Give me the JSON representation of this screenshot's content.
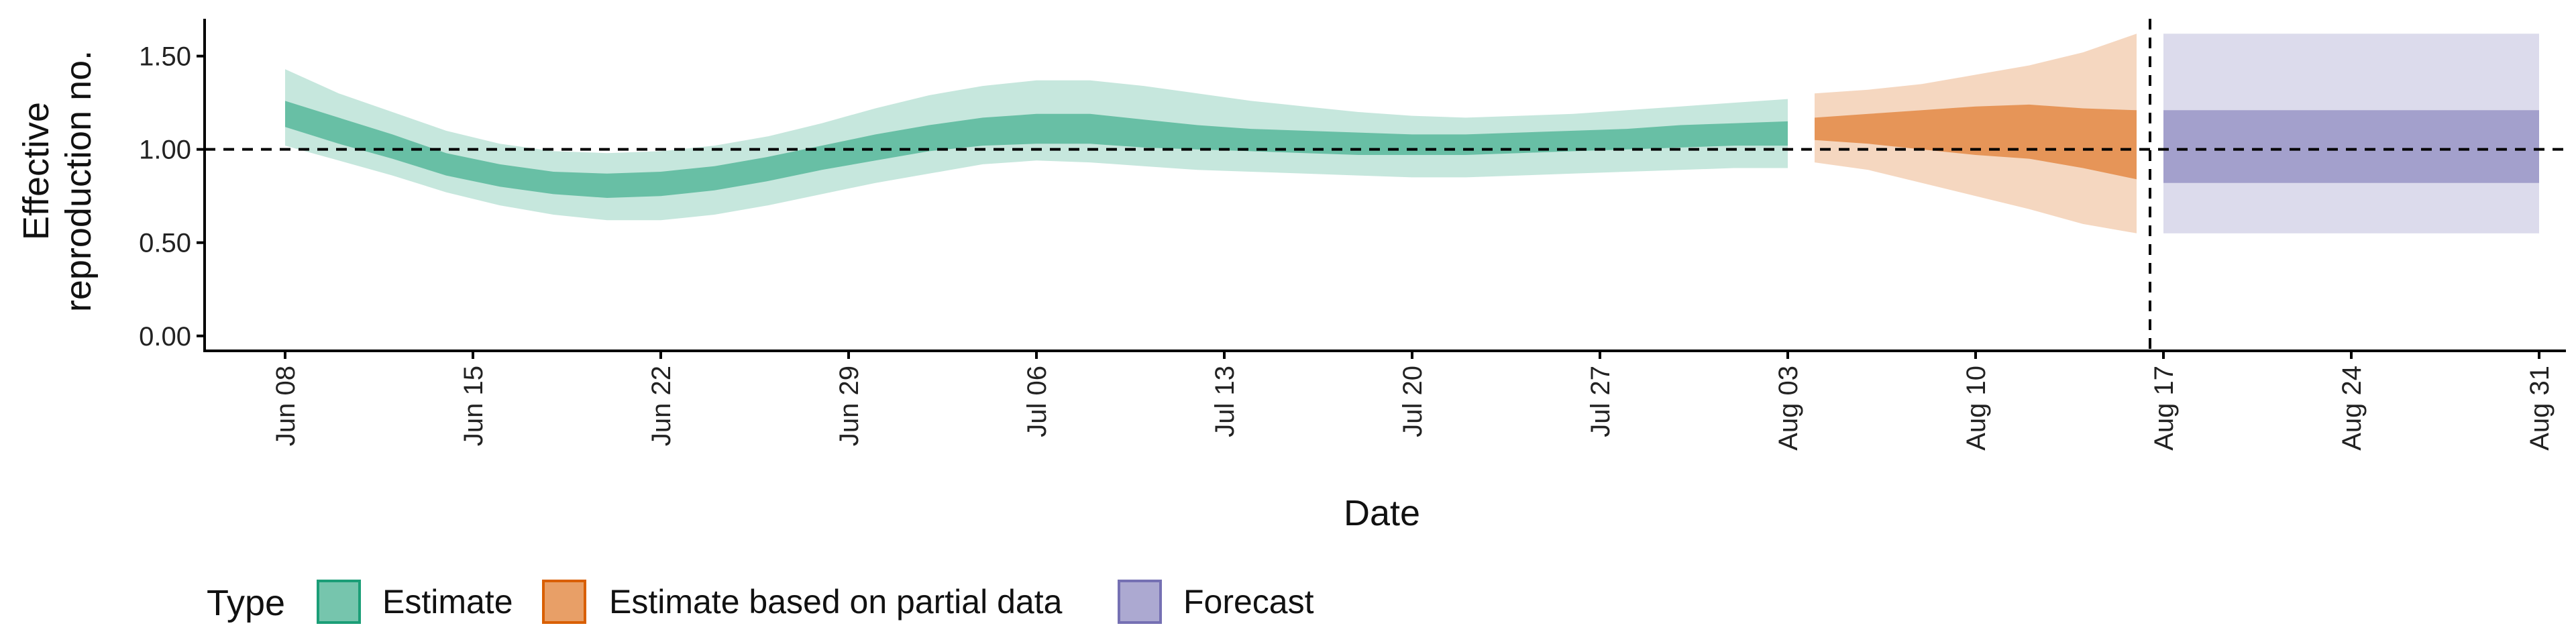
{
  "chart_data": {
    "type": "area",
    "title": "",
    "xlabel": "Date",
    "ylabel": [
      "Effective",
      "reproduction no."
    ],
    "x_domain": [
      "2020-06-05",
      "2020-09-01"
    ],
    "ylim": [
      -0.08,
      1.7
    ],
    "y_ticks": [
      0.0,
      0.5,
      1.0,
      1.5
    ],
    "y_tick_labels": [
      "0.00",
      "0.50",
      "1.00",
      "1.50"
    ],
    "x_ticks": [
      "2020-06-08",
      "2020-06-15",
      "2020-06-22",
      "2020-06-29",
      "2020-07-06",
      "2020-07-13",
      "2020-07-20",
      "2020-07-27",
      "2020-08-03",
      "2020-08-10",
      "2020-08-17",
      "2020-08-24",
      "2020-08-31"
    ],
    "x_tick_labels": [
      "Jun 08",
      "Jun 15",
      "Jun 22",
      "Jun 29",
      "Jul 06",
      "Jul 13",
      "Jul 20",
      "Jul 27",
      "Aug 03",
      "Aug 10",
      "Aug 17",
      "Aug 24",
      "Aug 31"
    ],
    "reference_hline": 1.0,
    "reference_vline": "2020-08-16",
    "grid": false,
    "legend_position": "bottom-left",
    "legend_title": "Type",
    "series": [
      {
        "name": "Estimate",
        "color": "#1b9e77",
        "x": [
          "2020-06-08",
          "2020-06-10",
          "2020-06-12",
          "2020-06-14",
          "2020-06-16",
          "2020-06-18",
          "2020-06-20",
          "2020-06-22",
          "2020-06-24",
          "2020-06-26",
          "2020-06-28",
          "2020-06-30",
          "2020-07-02",
          "2020-07-04",
          "2020-07-06",
          "2020-07-08",
          "2020-07-10",
          "2020-07-12",
          "2020-07-14",
          "2020-07-16",
          "2020-07-18",
          "2020-07-20",
          "2020-07-22",
          "2020-07-24",
          "2020-07-26",
          "2020-07-28",
          "2020-07-30",
          "2020-08-01",
          "2020-08-03"
        ],
        "lower90": [
          1.02,
          0.94,
          0.86,
          0.77,
          0.7,
          0.65,
          0.62,
          0.62,
          0.65,
          0.7,
          0.76,
          0.82,
          0.87,
          0.92,
          0.94,
          0.93,
          0.91,
          0.89,
          0.88,
          0.87,
          0.86,
          0.85,
          0.85,
          0.86,
          0.87,
          0.88,
          0.89,
          0.9,
          0.9
        ],
        "upper90": [
          1.43,
          1.3,
          1.2,
          1.1,
          1.03,
          0.99,
          0.98,
          0.99,
          1.02,
          1.07,
          1.14,
          1.22,
          1.29,
          1.34,
          1.37,
          1.37,
          1.34,
          1.3,
          1.26,
          1.23,
          1.2,
          1.18,
          1.17,
          1.18,
          1.19,
          1.21,
          1.23,
          1.25,
          1.27
        ],
        "lower50": [
          1.12,
          1.03,
          0.95,
          0.86,
          0.8,
          0.76,
          0.74,
          0.75,
          0.78,
          0.83,
          0.89,
          0.94,
          0.99,
          1.02,
          1.03,
          1.03,
          1.01,
          1.0,
          0.99,
          0.98,
          0.97,
          0.97,
          0.97,
          0.98,
          0.99,
          1.0,
          1.01,
          1.02,
          1.02
        ],
        "upper50": [
          1.26,
          1.17,
          1.08,
          0.98,
          0.92,
          0.88,
          0.87,
          0.88,
          0.91,
          0.96,
          1.02,
          1.08,
          1.13,
          1.17,
          1.19,
          1.19,
          1.16,
          1.13,
          1.11,
          1.1,
          1.09,
          1.08,
          1.08,
          1.09,
          1.1,
          1.11,
          1.13,
          1.14,
          1.15
        ]
      },
      {
        "name": "Estimate based on partial data",
        "color": "#d95f02",
        "x": [
          "2020-08-04",
          "2020-08-06",
          "2020-08-08",
          "2020-08-10",
          "2020-08-12",
          "2020-08-14",
          "2020-08-16"
        ],
        "lower90": [
          0.93,
          0.89,
          0.82,
          0.75,
          0.68,
          0.6,
          0.55
        ],
        "upper90": [
          1.3,
          1.32,
          1.35,
          1.4,
          1.45,
          1.52,
          1.62
        ],
        "lower50": [
          1.05,
          1.03,
          1.0,
          0.97,
          0.95,
          0.9,
          0.84
        ],
        "upper50": [
          1.17,
          1.19,
          1.21,
          1.23,
          1.24,
          1.22,
          1.21
        ]
      },
      {
        "name": "Forecast",
        "color": "#7570b3",
        "x": [
          "2020-08-17",
          "2020-08-31"
        ],
        "lower90": [
          0.55,
          0.55
        ],
        "upper90": [
          1.62,
          1.62
        ],
        "lower50": [
          0.82,
          0.82
        ],
        "upper50": [
          1.21,
          1.21
        ]
      }
    ]
  }
}
